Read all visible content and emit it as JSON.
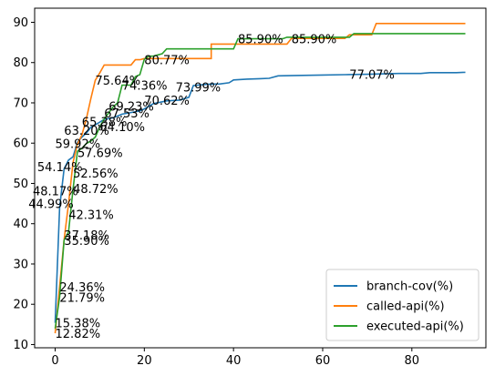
{
  "chart_data": {
    "type": "line",
    "title": "",
    "xlabel": "",
    "ylabel": "",
    "xlim": [
      -4.6,
      96.6
    ],
    "ylim": [
      9.2,
      93.5
    ],
    "xticks": [
      0,
      20,
      40,
      60,
      80
    ],
    "yticks": [
      10,
      20,
      30,
      40,
      50,
      60,
      70,
      80,
      90
    ],
    "grid": false,
    "legend_position": "bottom-right",
    "series": [
      {
        "name": "branch-cov(%)",
        "color": "#1f77b4",
        "points": [
          [
            0,
            15.4
          ],
          [
            1,
            44.0
          ],
          [
            2,
            53.6
          ],
          [
            3,
            55.8
          ],
          [
            4,
            56.6
          ],
          [
            5,
            60.2
          ],
          [
            6,
            61.5
          ],
          [
            7,
            62.5
          ],
          [
            8,
            63.9
          ],
          [
            10,
            65.2
          ],
          [
            11,
            65.9
          ],
          [
            13,
            66.3
          ],
          [
            15,
            67.2
          ],
          [
            17,
            67.6
          ],
          [
            19,
            68.0
          ],
          [
            20,
            68.5
          ],
          [
            22,
            69.8
          ],
          [
            25,
            70.5
          ],
          [
            28,
            70.7
          ],
          [
            30,
            71.4
          ],
          [
            31,
            74.3
          ],
          [
            34,
            74.6
          ],
          [
            37,
            74.7
          ],
          [
            39,
            75.0
          ],
          [
            40,
            75.7
          ],
          [
            43,
            75.9
          ],
          [
            46,
            76.0
          ],
          [
            48,
            76.1
          ],
          [
            50,
            76.7
          ],
          [
            54,
            76.8
          ],
          [
            60,
            76.9
          ],
          [
            65,
            77.0
          ],
          [
            70,
            77.1
          ],
          [
            77,
            77.3
          ],
          [
            82,
            77.3
          ],
          [
            84,
            77.5
          ],
          [
            90,
            77.5
          ],
          [
            92,
            77.6
          ]
        ]
      },
      {
        "name": "called-api(%)",
        "color": "#ff7f0e",
        "points": [
          [
            0,
            12.8
          ],
          [
            1,
            24.4
          ],
          [
            2,
            36.0
          ],
          [
            3,
            45.0
          ],
          [
            4,
            55.2
          ],
          [
            5,
            59.8
          ],
          [
            6,
            62.0
          ],
          [
            7,
            66.0
          ],
          [
            8,
            71.0
          ],
          [
            9,
            75.6
          ],
          [
            10,
            77.4
          ],
          [
            11,
            79.4
          ],
          [
            14,
            79.4
          ],
          [
            16,
            79.4
          ],
          [
            17,
            79.4
          ],
          [
            18,
            80.7
          ],
          [
            19,
            80.7
          ],
          [
            20,
            81.0
          ],
          [
            35,
            81.0
          ],
          [
            35,
            84.6
          ],
          [
            52,
            84.6
          ],
          [
            53,
            86.0
          ],
          [
            65,
            86.0
          ],
          [
            66,
            86.9
          ],
          [
            71,
            86.9
          ],
          [
            72,
            89.7
          ],
          [
            92,
            89.7
          ]
        ]
      },
      {
        "name": "executed-api(%)",
        "color": "#2ca02c",
        "points": [
          [
            0,
            14.0
          ],
          [
            1,
            21.8
          ],
          [
            2,
            35.9
          ],
          [
            3,
            38.0
          ],
          [
            4,
            48.5
          ],
          [
            5,
            58.0
          ],
          [
            6,
            58.7
          ],
          [
            7,
            59.9
          ],
          [
            8,
            60.5
          ],
          [
            9,
            61.5
          ],
          [
            10,
            64.0
          ],
          [
            11,
            66.0
          ],
          [
            12,
            67.5
          ],
          [
            13,
            69.0
          ],
          [
            14,
            70.0
          ],
          [
            15,
            74.4
          ],
          [
            16,
            74.4
          ],
          [
            17,
            74.4
          ],
          [
            18,
            76.5
          ],
          [
            19,
            77.0
          ],
          [
            20,
            80.8
          ],
          [
            21,
            81.6
          ],
          [
            22,
            81.6
          ],
          [
            24,
            82.2
          ],
          [
            25,
            83.4
          ],
          [
            40,
            83.4
          ],
          [
            41,
            85.9
          ],
          [
            51,
            85.9
          ],
          [
            52,
            86.3
          ],
          [
            66,
            86.3
          ],
          [
            67,
            87.2
          ],
          [
            92,
            87.2
          ]
        ]
      }
    ],
    "annotations": [
      {
        "text": "12.82%",
        "x": 0,
        "y": 12.82
      },
      {
        "text": "15.38%",
        "x": 0,
        "y": 15.38
      },
      {
        "text": "21.79%",
        "x": 1,
        "y": 21.79
      },
      {
        "text": "24.36%",
        "x": 1,
        "y": 24.36
      },
      {
        "text": "35.90%",
        "x": 2,
        "y": 35.9
      },
      {
        "text": "37.18%",
        "x": 2,
        "y": 37.18
      },
      {
        "text": "42.31%",
        "x": 3,
        "y": 42.31
      },
      {
        "text": "44.99%",
        "x": -6,
        "y": 44.99
      },
      {
        "text": "48.17%",
        "x": -5,
        "y": 48.17
      },
      {
        "text": "48.72%",
        "x": 4,
        "y": 48.72
      },
      {
        "text": "52.56%",
        "x": 4,
        "y": 52.56
      },
      {
        "text": "54.14%",
        "x": -4,
        "y": 54.14
      },
      {
        "text": "57.69%",
        "x": 5,
        "y": 57.69
      },
      {
        "text": "59.92%",
        "x": 0,
        "y": 59.92
      },
      {
        "text": "63.20%",
        "x": 2,
        "y": 63.2
      },
      {
        "text": "64.10%",
        "x": 10,
        "y": 64.1
      },
      {
        "text": "65.38%",
        "x": 6,
        "y": 65.38
      },
      {
        "text": "67.53%",
        "x": 11,
        "y": 67.53
      },
      {
        "text": "69.23%",
        "x": 12,
        "y": 69.23
      },
      {
        "text": "70.62%",
        "x": 20,
        "y": 70.62
      },
      {
        "text": "73.99%",
        "x": 27,
        "y": 73.99
      },
      {
        "text": "74.36%",
        "x": 15,
        "y": 74.36
      },
      {
        "text": "75.64%",
        "x": 9,
        "y": 75.64
      },
      {
        "text": "77.07%",
        "x": 66,
        "y": 77.07
      },
      {
        "text": "80.77%",
        "x": 20,
        "y": 80.77
      },
      {
        "text": "85.90%",
        "x": 41,
        "y": 85.9
      },
      {
        "text": "85.90%",
        "x": 53,
        "y": 85.9
      }
    ]
  }
}
